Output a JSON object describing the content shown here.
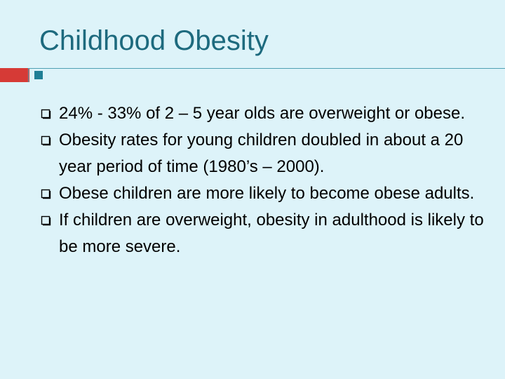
{
  "slide": {
    "title": "Childhood Obesity",
    "bullet_marker_icon": "hollow-square-bullet-icon",
    "accent_colors": {
      "title": "#1d6a7e",
      "red_bar": "#d63a36",
      "rule_line": "#4fa0b3",
      "square": "#1f7f95",
      "background": "#ddf3f9"
    },
    "bullets": [
      "24% - 33% of 2 – 5 year olds are overweight or obese.",
      "Obesity rates for young children doubled in about a 20 year period of time (1980’s – 2000).",
      "Obese children are more likely to become obese adults.",
      "If children are overweight, obesity in adulthood is likely to be more severe."
    ]
  }
}
